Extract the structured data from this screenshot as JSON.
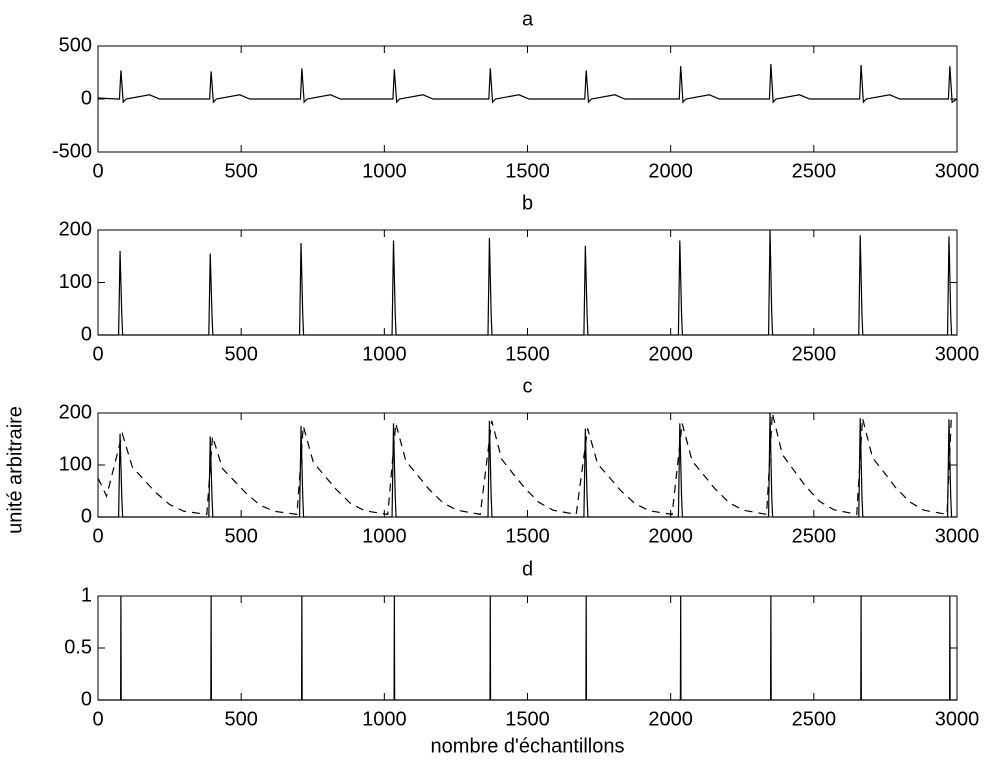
{
  "chart_data": [
    {
      "type": "line",
      "title": "a",
      "x": [
        0,
        65,
        75,
        80,
        88,
        98,
        180,
        215,
        380,
        390,
        395,
        403,
        413,
        495,
        530,
        697,
        707,
        712,
        720,
        730,
        812,
        847,
        1020,
        1030,
        1035,
        1043,
        1053,
        1135,
        1170,
        1355,
        1365,
        1370,
        1378,
        1388,
        1470,
        1505,
        1690,
        1700,
        1705,
        1713,
        1723,
        1805,
        1840,
        2020,
        2030,
        2035,
        2043,
        2053,
        2135,
        2170,
        2335,
        2345,
        2350,
        2358,
        2368,
        2450,
        2485,
        2650,
        2660,
        2665,
        2673,
        2683,
        2765,
        2800,
        2960,
        2970,
        2975,
        2983,
        3000
      ],
      "series": [
        {
          "color": "#000000",
          "linestyle": "solid",
          "values": [
            10,
            0,
            0,
            270,
            -30,
            0,
            40,
            0,
            0,
            0,
            260,
            -30,
            0,
            40,
            0,
            0,
            0,
            290,
            -30,
            0,
            40,
            0,
            0,
            0,
            280,
            -30,
            0,
            40,
            0,
            0,
            0,
            290,
            -30,
            0,
            40,
            0,
            0,
            0,
            270,
            -30,
            0,
            40,
            0,
            0,
            0,
            310,
            -30,
            0,
            40,
            0,
            0,
            0,
            330,
            -30,
            0,
            40,
            0,
            0,
            0,
            320,
            -30,
            0,
            40,
            0,
            0,
            0,
            310,
            -30,
            0
          ]
        }
      ],
      "xlim": [
        0,
        3000
      ],
      "xticks": [
        0,
        500,
        1000,
        1500,
        2000,
        2500,
        3000
      ],
      "ylim": [
        -500,
        500
      ],
      "yticks": [
        -500,
        0,
        500
      ]
    },
    {
      "type": "line",
      "title": "b",
      "x": [
        0,
        72,
        77,
        83,
        86,
        387,
        392,
        398,
        401,
        704,
        709,
        715,
        718,
        1027,
        1032,
        1038,
        1041,
        1362,
        1367,
        1373,
        1376,
        1697,
        1702,
        1708,
        1711,
        2027,
        2032,
        2038,
        2041,
        2342,
        2347,
        2353,
        2356,
        2657,
        2662,
        2668,
        2671,
        2967,
        2972,
        2978,
        2981,
        3000
      ],
      "series": [
        {
          "color": "#000000",
          "linestyle": "solid",
          "values": [
            0,
            0,
            160,
            40,
            0,
            0,
            155,
            40,
            0,
            0,
            175,
            40,
            0,
            0,
            180,
            40,
            0,
            0,
            185,
            40,
            0,
            0,
            170,
            40,
            0,
            0,
            180,
            40,
            0,
            0,
            200,
            40,
            0,
            0,
            190,
            40,
            0,
            0,
            188,
            40,
            0,
            0
          ]
        }
      ],
      "xlim": [
        0,
        3000
      ],
      "xticks": [
        0,
        500,
        1000,
        1500,
        2000,
        2500,
        3000
      ],
      "ylim": [
        0,
        200
      ],
      "yticks": [
        0,
        100,
        200
      ]
    },
    {
      "type": "line",
      "title": "c",
      "ylabel": "unité arbitraire",
      "series": [
        {
          "color": "#000000",
          "linestyle": "solid",
          "x": [
            0,
            72,
            77,
            83,
            86,
            387,
            392,
            398,
            401,
            704,
            709,
            715,
            718,
            1027,
            1032,
            1038,
            1041,
            1362,
            1367,
            1373,
            1376,
            1697,
            1702,
            1708,
            1711,
            2027,
            2032,
            2038,
            2041,
            2342,
            2347,
            2353,
            2356,
            2657,
            2662,
            2668,
            2671,
            2967,
            2972,
            2978,
            2981,
            3000
          ],
          "values": [
            0,
            0,
            160,
            40,
            0,
            0,
            155,
            40,
            0,
            0,
            175,
            40,
            0,
            0,
            180,
            40,
            0,
            0,
            185,
            40,
            0,
            0,
            170,
            40,
            0,
            0,
            180,
            40,
            0,
            0,
            200,
            40,
            0,
            0,
            190,
            40,
            0,
            0,
            188,
            40,
            0,
            0
          ]
        },
        {
          "color": "#000000",
          "linestyle": "dashed",
          "x": [
            0,
            30,
            85,
            120,
            160,
            200,
            250,
            300,
            380,
            400,
            435,
            475,
            515,
            565,
            615,
            695,
            717,
            752,
            792,
            832,
            882,
            932,
            1012,
            1040,
            1075,
            1115,
            1155,
            1205,
            1255,
            1335,
            1375,
            1410,
            1450,
            1490,
            1540,
            1590,
            1670,
            1710,
            1745,
            1785,
            1825,
            1875,
            1925,
            2005,
            2040,
            2075,
            2115,
            2155,
            2205,
            2255,
            2335,
            2355,
            2390,
            2430,
            2470,
            2520,
            2570,
            2650,
            2670,
            2705,
            2745,
            2785,
            2835,
            2885,
            2965,
            2980,
            3000
          ],
          "values": [
            75,
            40,
            160,
            96,
            72,
            48,
            24,
            11,
            5,
            155,
            93,
            70,
            47,
            23,
            11,
            5,
            175,
            105,
            79,
            53,
            26,
            12,
            5,
            180,
            108,
            81,
            54,
            27,
            13,
            5,
            185,
            111,
            83,
            56,
            28,
            13,
            5,
            170,
            102,
            77,
            51,
            26,
            12,
            5,
            180,
            108,
            81,
            54,
            27,
            13,
            5,
            200,
            120,
            90,
            60,
            30,
            14,
            5,
            190,
            114,
            86,
            57,
            29,
            13,
            5,
            188,
            188
          ]
        }
      ],
      "xlim": [
        0,
        3000
      ],
      "xticks": [
        0,
        500,
        1000,
        1500,
        2000,
        2500,
        3000
      ],
      "ylim": [
        0,
        200
      ],
      "yticks": [
        0,
        100,
        200
      ]
    },
    {
      "type": "line",
      "title": "d",
      "xlabel": "nombre d'échantillons",
      "x": [
        0,
        79,
        80,
        81,
        394,
        395,
        396,
        711,
        712,
        713,
        1034,
        1035,
        1036,
        1369,
        1370,
        1371,
        1704,
        1705,
        1706,
        2034,
        2035,
        2036,
        2349,
        2350,
        2351,
        2664,
        2665,
        2666,
        2974,
        2975,
        2976,
        3000
      ],
      "series": [
        {
          "color": "#000000",
          "linestyle": "solid",
          "values": [
            0,
            0,
            1,
            0,
            0,
            1,
            0,
            0,
            1,
            0,
            0,
            1,
            0,
            0,
            1,
            0,
            0,
            1,
            0,
            0,
            1,
            0,
            0,
            1,
            0,
            0,
            1,
            0,
            0,
            1,
            0,
            0
          ]
        }
      ],
      "xlim": [
        0,
        3000
      ],
      "xticks": [
        0,
        500,
        1000,
        1500,
        2000,
        2500,
        3000
      ],
      "ylim": [
        0,
        1
      ],
      "yticks": [
        0,
        0.5,
        1
      ]
    }
  ]
}
